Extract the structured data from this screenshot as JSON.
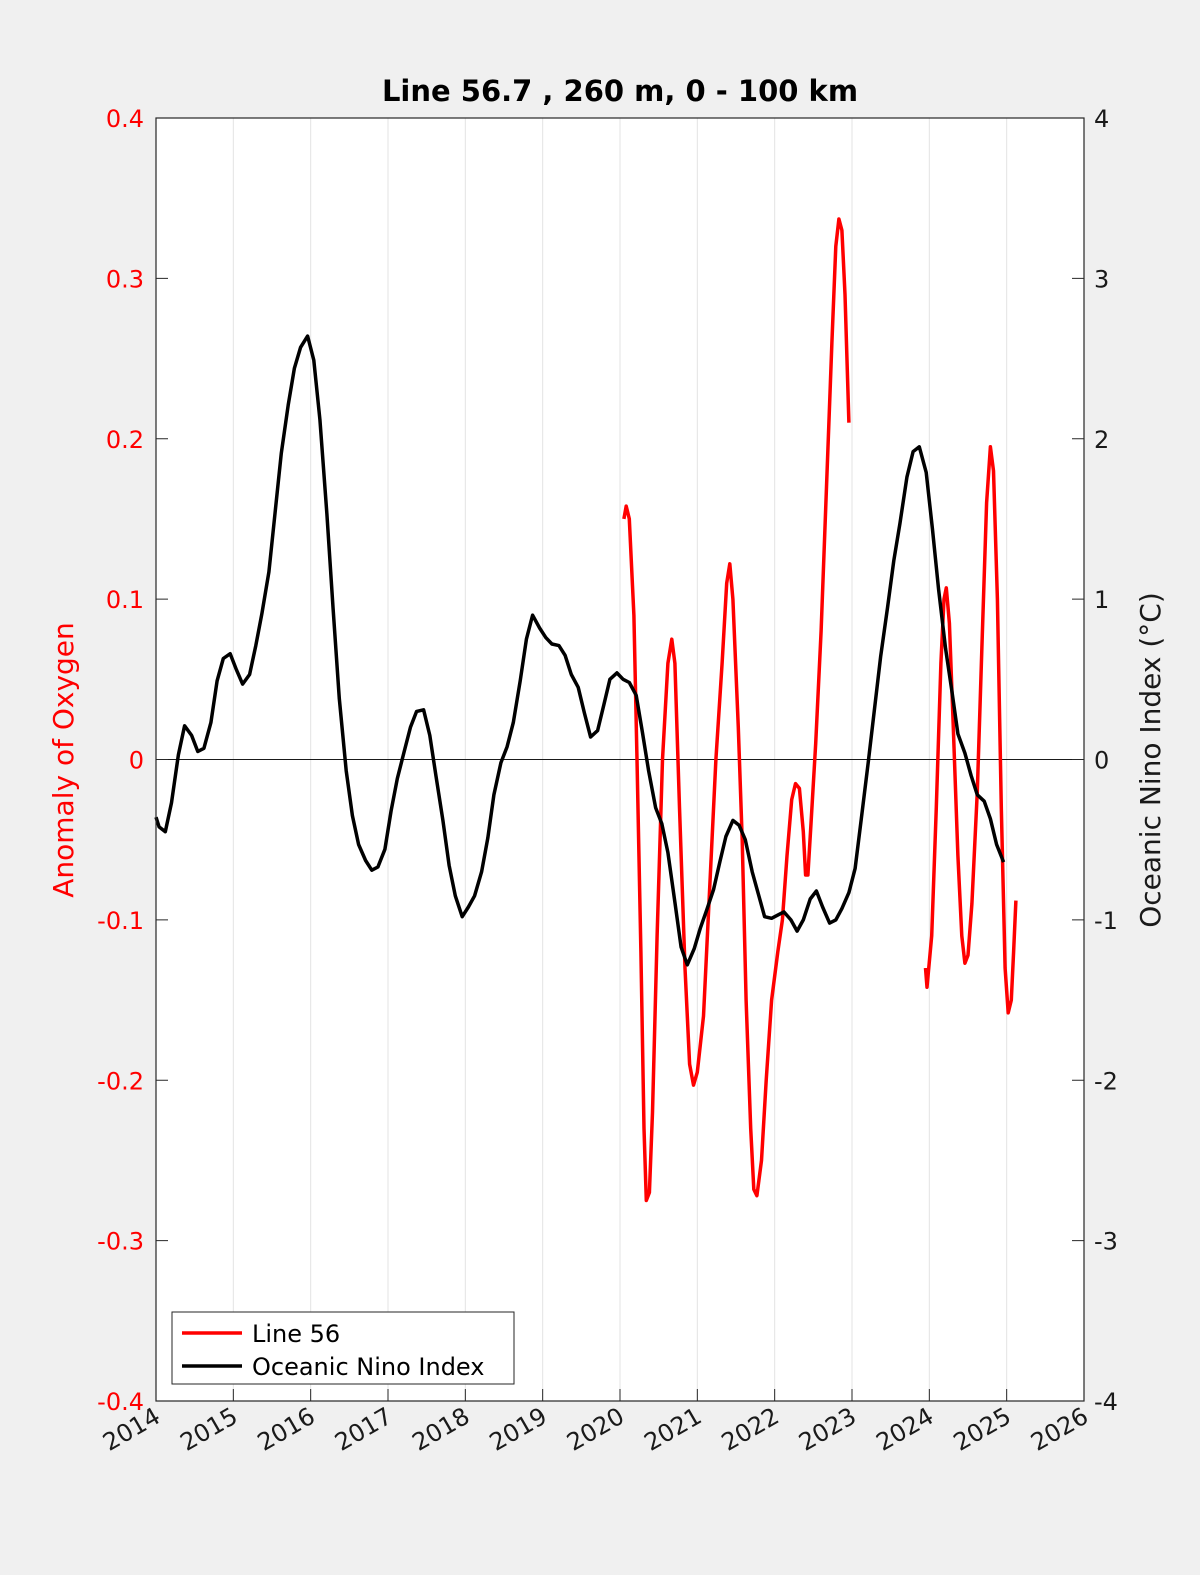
{
  "chart_data": {
    "type": "line",
    "title": "Line 56.7 , 260 m, 0 - 100 km",
    "ylabel_left": "Anomaly of Oxygen",
    "ylabel_right": "Oceanic Nino Index (°C)",
    "xlabel": "",
    "xlim": [
      2014,
      2026
    ],
    "ylim_left": [
      -0.4,
      0.4
    ],
    "ylim_right": [
      -4,
      4
    ],
    "x_ticks": [
      "2014",
      "2015",
      "2016",
      "2017",
      "2018",
      "2019",
      "2020",
      "2021",
      "2022",
      "2023",
      "2024",
      "2025",
      "2026"
    ],
    "y_left_ticks": [
      "-0.4",
      "-0.3",
      "-0.2",
      "-0.1",
      "0",
      "0.1",
      "0.2",
      "0.3",
      "0.4"
    ],
    "y_right_ticks": [
      "-4",
      "-3",
      "-2",
      "-1",
      "0",
      "1",
      "2",
      "3",
      "4"
    ],
    "grid": "vertical",
    "legend_position": "bottom-left",
    "colors": {
      "line56": "#ff0000",
      "oni": "#000000",
      "left_axis": "#ff0000"
    },
    "series": [
      {
        "name": "Line 56",
        "axis": "left",
        "color": "#ff0000",
        "segments": [
          [
            [
              2020.05,
              0.15
            ],
            [
              2020.08,
              0.158
            ],
            [
              2020.12,
              0.15
            ],
            [
              2020.18,
              0.09
            ],
            [
              2020.22,
              0.0
            ],
            [
              2020.27,
              -0.12
            ],
            [
              2020.31,
              -0.23
            ],
            [
              2020.34,
              -0.275
            ],
            [
              2020.38,
              -0.27
            ],
            [
              2020.42,
              -0.22
            ],
            [
              2020.48,
              -0.11
            ],
            [
              2020.55,
              0.0
            ],
            [
              2020.62,
              0.06
            ],
            [
              2020.67,
              0.075
            ],
            [
              2020.71,
              0.06
            ],
            [
              2020.77,
              -0.03
            ],
            [
              2020.84,
              -0.13
            ],
            [
              2020.9,
              -0.19
            ],
            [
              2020.95,
              -0.203
            ],
            [
              2021.0,
              -0.195
            ],
            [
              2021.08,
              -0.16
            ],
            [
              2021.16,
              -0.08
            ],
            [
              2021.24,
              0.0
            ],
            [
              2021.32,
              0.06
            ],
            [
              2021.38,
              0.11
            ],
            [
              2021.42,
              0.122
            ],
            [
              2021.46,
              0.1
            ],
            [
              2021.53,
              0.02
            ],
            [
              2021.58,
              -0.05
            ],
            [
              2021.63,
              -0.15
            ],
            [
              2021.69,
              -0.23
            ],
            [
              2021.73,
              -0.268
            ],
            [
              2021.77,
              -0.272
            ],
            [
              2021.83,
              -0.25
            ],
            [
              2021.89,
              -0.2
            ],
            [
              2021.96,
              -0.15
            ],
            [
              2022.04,
              -0.12
            ],
            [
              2022.1,
              -0.1
            ],
            [
              2022.16,
              -0.06
            ],
            [
              2022.22,
              -0.025
            ],
            [
              2022.27,
              -0.015
            ],
            [
              2022.32,
              -0.018
            ],
            [
              2022.37,
              -0.045
            ],
            [
              2022.4,
              -0.072
            ],
            [
              2022.43,
              -0.072
            ],
            [
              2022.47,
              -0.04
            ],
            [
              2022.53,
              0.01
            ],
            [
              2022.6,
              0.08
            ],
            [
              2022.67,
              0.17
            ],
            [
              2022.74,
              0.26
            ],
            [
              2022.79,
              0.32
            ],
            [
              2022.83,
              0.337
            ],
            [
              2022.87,
              0.33
            ],
            [
              2022.91,
              0.29
            ],
            [
              2022.96,
              0.21
            ]
          ],
          [
            [
              2023.95,
              -0.13
            ],
            [
              2023.97,
              -0.142
            ],
            [
              2024.03,
              -0.11
            ],
            [
              2024.09,
              -0.03
            ],
            [
              2024.15,
              0.06
            ],
            [
              2024.19,
              0.1
            ],
            [
              2024.22,
              0.107
            ],
            [
              2024.26,
              0.085
            ],
            [
              2024.31,
              0.02
            ],
            [
              2024.37,
              -0.06
            ],
            [
              2024.42,
              -0.11
            ],
            [
              2024.46,
              -0.127
            ],
            [
              2024.5,
              -0.122
            ],
            [
              2024.55,
              -0.09
            ],
            [
              2024.62,
              -0.02
            ],
            [
              2024.68,
              0.07
            ],
            [
              2024.74,
              0.16
            ],
            [
              2024.79,
              0.195
            ],
            [
              2024.83,
              0.18
            ],
            [
              2024.88,
              0.1
            ],
            [
              2024.93,
              -0.03
            ],
            [
              2024.98,
              -0.13
            ],
            [
              2025.02,
              -0.158
            ],
            [
              2025.06,
              -0.15
            ],
            [
              2025.09,
              -0.12
            ],
            [
              2025.12,
              -0.088
            ]
          ]
        ]
      },
      {
        "name": "Oceanic Nino Index",
        "axis": "right",
        "color": "#000000",
        "points": [
          [
            2014.0,
            -0.36
          ],
          [
            2014.04,
            -0.42
          ],
          [
            2014.12,
            -0.45
          ],
          [
            2014.2,
            -0.27
          ],
          [
            2014.29,
            0.03
          ],
          [
            2014.37,
            0.21
          ],
          [
            2014.46,
            0.15
          ],
          [
            2014.54,
            0.05
          ],
          [
            2014.62,
            0.07
          ],
          [
            2014.71,
            0.23
          ],
          [
            2014.79,
            0.49
          ],
          [
            2014.87,
            0.63
          ],
          [
            2014.96,
            0.66
          ],
          [
            2015.04,
            0.56
          ],
          [
            2015.12,
            0.47
          ],
          [
            2015.21,
            0.53
          ],
          [
            2015.29,
            0.71
          ],
          [
            2015.37,
            0.91
          ],
          [
            2015.46,
            1.17
          ],
          [
            2015.54,
            1.54
          ],
          [
            2015.62,
            1.91
          ],
          [
            2015.71,
            2.21
          ],
          [
            2015.79,
            2.44
          ],
          [
            2015.87,
            2.57
          ],
          [
            2015.96,
            2.64
          ],
          [
            2016.04,
            2.49
          ],
          [
            2016.12,
            2.12
          ],
          [
            2016.21,
            1.53
          ],
          [
            2016.29,
            0.94
          ],
          [
            2016.37,
            0.38
          ],
          [
            2016.46,
            -0.07
          ],
          [
            2016.54,
            -0.35
          ],
          [
            2016.62,
            -0.53
          ],
          [
            2016.71,
            -0.63
          ],
          [
            2016.79,
            -0.69
          ],
          [
            2016.87,
            -0.67
          ],
          [
            2016.96,
            -0.56
          ],
          [
            2017.04,
            -0.32
          ],
          [
            2017.12,
            -0.12
          ],
          [
            2017.21,
            0.05
          ],
          [
            2017.29,
            0.2
          ],
          [
            2017.37,
            0.3
          ],
          [
            2017.46,
            0.31
          ],
          [
            2017.54,
            0.15
          ],
          [
            2017.62,
            -0.1
          ],
          [
            2017.71,
            -0.38
          ],
          [
            2017.79,
            -0.66
          ],
          [
            2017.87,
            -0.85
          ],
          [
            2017.96,
            -0.98
          ],
          [
            2018.04,
            -0.92
          ],
          [
            2018.12,
            -0.85
          ],
          [
            2018.21,
            -0.7
          ],
          [
            2018.29,
            -0.49
          ],
          [
            2018.37,
            -0.22
          ],
          [
            2018.46,
            -0.02
          ],
          [
            2018.54,
            0.08
          ],
          [
            2018.62,
            0.23
          ],
          [
            2018.71,
            0.49
          ],
          [
            2018.79,
            0.75
          ],
          [
            2018.87,
            0.9
          ],
          [
            2018.96,
            0.82
          ],
          [
            2019.04,
            0.76
          ],
          [
            2019.12,
            0.72
          ],
          [
            2019.21,
            0.71
          ],
          [
            2019.29,
            0.65
          ],
          [
            2019.37,
            0.53
          ],
          [
            2019.46,
            0.45
          ],
          [
            2019.54,
            0.29
          ],
          [
            2019.62,
            0.14
          ],
          [
            2019.71,
            0.18
          ],
          [
            2019.79,
            0.34
          ],
          [
            2019.87,
            0.5
          ],
          [
            2019.96,
            0.54
          ],
          [
            2020.04,
            0.5
          ],
          [
            2020.12,
            0.48
          ],
          [
            2020.21,
            0.4
          ],
          [
            2020.29,
            0.17
          ],
          [
            2020.37,
            -0.07
          ],
          [
            2020.46,
            -0.3
          ],
          [
            2020.54,
            -0.4
          ],
          [
            2020.62,
            -0.58
          ],
          [
            2020.71,
            -0.89
          ],
          [
            2020.79,
            -1.17
          ],
          [
            2020.87,
            -1.28
          ],
          [
            2020.96,
            -1.18
          ],
          [
            2021.04,
            -1.05
          ],
          [
            2021.12,
            -0.94
          ],
          [
            2021.21,
            -0.81
          ],
          [
            2021.29,
            -0.64
          ],
          [
            2021.37,
            -0.48
          ],
          [
            2021.46,
            -0.38
          ],
          [
            2021.54,
            -0.41
          ],
          [
            2021.62,
            -0.5
          ],
          [
            2021.71,
            -0.7
          ],
          [
            2021.79,
            -0.84
          ],
          [
            2021.87,
            -0.98
          ],
          [
            2021.96,
            -0.99
          ],
          [
            2022.04,
            -0.97
          ],
          [
            2022.12,
            -0.95
          ],
          [
            2022.21,
            -1.0
          ],
          [
            2022.29,
            -1.07
          ],
          [
            2022.37,
            -1.0
          ],
          [
            2022.46,
            -0.87
          ],
          [
            2022.54,
            -0.82
          ],
          [
            2022.62,
            -0.92
          ],
          [
            2022.71,
            -1.02
          ],
          [
            2022.79,
            -1.0
          ],
          [
            2022.87,
            -0.93
          ],
          [
            2022.96,
            -0.83
          ],
          [
            2023.04,
            -0.68
          ],
          [
            2023.12,
            -0.37
          ],
          [
            2023.21,
            -0.02
          ],
          [
            2023.29,
            0.31
          ],
          [
            2023.37,
            0.64
          ],
          [
            2023.46,
            0.95
          ],
          [
            2023.54,
            1.24
          ],
          [
            2023.62,
            1.47
          ],
          [
            2023.71,
            1.76
          ],
          [
            2023.79,
            1.92
          ],
          [
            2023.87,
            1.95
          ],
          [
            2023.96,
            1.79
          ],
          [
            2024.04,
            1.44
          ],
          [
            2024.12,
            1.06
          ],
          [
            2024.21,
            0.69
          ],
          [
            2024.29,
            0.43
          ],
          [
            2024.37,
            0.16
          ],
          [
            2024.46,
            0.04
          ],
          [
            2024.54,
            -0.1
          ],
          [
            2024.62,
            -0.22
          ],
          [
            2024.71,
            -0.26
          ],
          [
            2024.79,
            -0.37
          ],
          [
            2024.87,
            -0.53
          ],
          [
            2024.96,
            -0.64
          ]
        ]
      }
    ]
  }
}
